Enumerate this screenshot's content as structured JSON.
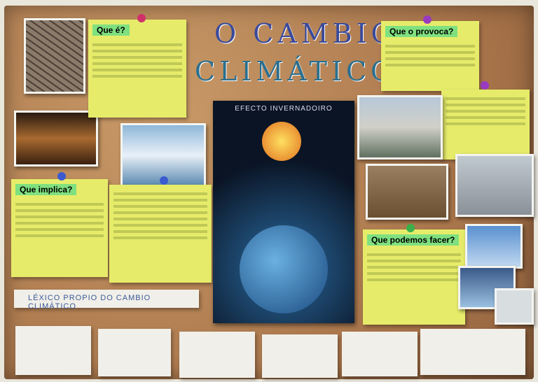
{
  "title": {
    "line1": "O CAMBIO",
    "line2": "CLIMÁTICO"
  },
  "notes": [
    {
      "heading": "Que é?"
    },
    {
      "heading": "Que o provoca?"
    },
    {
      "heading": "Que implica?"
    },
    {
      "heading": "Que podemos facer?"
    }
  ],
  "poster": {
    "title": "EFECTO INVERNADOIRO"
  },
  "banner": {
    "text": "LÉXICO PROPIO DO CAMBIO CLIMÁTICO"
  }
}
